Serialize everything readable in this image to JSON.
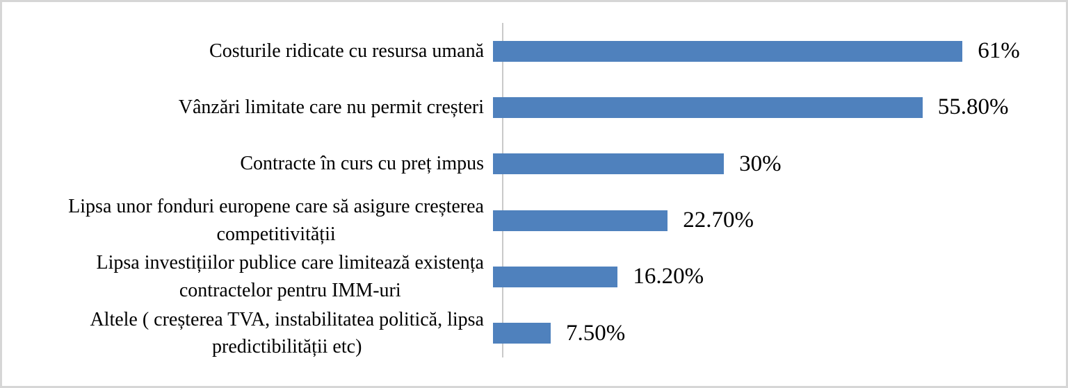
{
  "frame": {
    "background_color": "#ffffff",
    "border_color": "#d6d6d6"
  },
  "chart_data": {
    "type": "bar",
    "orientation": "horizontal",
    "title": "",
    "xlabel": "",
    "ylabel": "",
    "categories": [
      "Costurile ridicate cu resursa umană",
      "Vânzări limitate care nu permit creșteri",
      "Contracte în curs cu preț impus",
      "Lipsa unor fonduri europene care să asigure creșterea\ncompetitivității",
      "Lipsa investițiilor publice care limitează existența\ncontractelor pentru IMM-uri",
      "Altele ( creșterea TVA, instabilitatea politică, lipsa\npredictibilității etc)"
    ],
    "values": [
      61,
      55.8,
      30,
      22.7,
      16.2,
      7.5
    ],
    "value_labels": [
      "61%",
      "55.80%",
      "30%",
      "22.70%",
      "16.20%",
      "7.50%"
    ],
    "xlim": [
      0,
      73.5
    ],
    "grid": false,
    "legend": false,
    "data_labels_position": "outside-end",
    "bar_color": "#4f81bd",
    "axis_line_color": "#c9c9c9",
    "text_color": "#000000"
  }
}
